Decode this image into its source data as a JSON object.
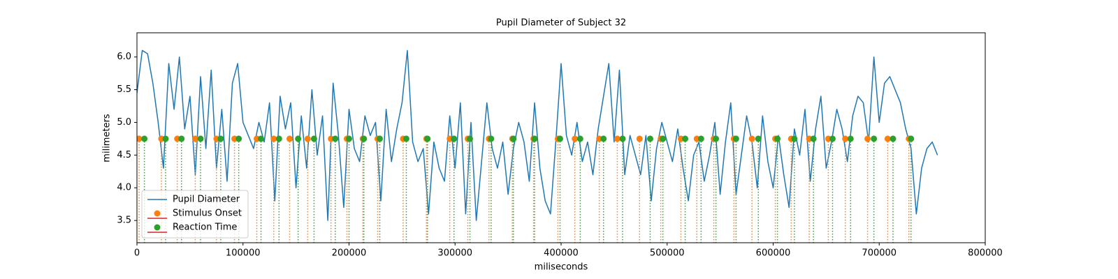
{
  "chart_data": {
    "type": "line",
    "title": "Pupil Diameter of Subject 32",
    "xlabel": "miliseconds",
    "ylabel": "milimeters",
    "xlim": [
      0,
      800000
    ],
    "xticks": [
      0,
      100000,
      200000,
      300000,
      400000,
      500000,
      600000,
      700000,
      800000
    ],
    "ylim": [
      3.16,
      6.37
    ],
    "yticks": [
      3.5,
      {
        "value": 4,
        "label": "4.0"
      },
      4.5,
      {
        "value": 5,
        "label": "5.0"
      },
      5.5,
      {
        "value": 6,
        "label": "6.0"
      }
    ],
    "legend": "lower left",
    "series": [
      {
        "name": "Pupil Diameter",
        "type": "line",
        "color": "#1f77b4",
        "x": [
          0,
          5000,
          10000,
          15000,
          20000,
          25000,
          30000,
          35000,
          40000,
          45000,
          50000,
          55000,
          60000,
          65000,
          70000,
          75000,
          80000,
          85000,
          90000,
          95000,
          100000,
          105000,
          110000,
          115000,
          120000,
          125000,
          130000,
          135000,
          140000,
          145000,
          150000,
          155000,
          160000,
          165000,
          170000,
          175000,
          180000,
          185000,
          190000,
          195000,
          200000,
          205000,
          210000,
          215000,
          220000,
          225000,
          230000,
          235000,
          240000,
          245000,
          250000,
          255000,
          260000,
          265000,
          270000,
          275000,
          280000,
          285000,
          290000,
          295000,
          300000,
          305000,
          310000,
          315000,
          320000,
          325000,
          330000,
          335000,
          340000,
          345000,
          350000,
          355000,
          360000,
          365000,
          370000,
          375000,
          380000,
          385000,
          390000,
          395000,
          400000,
          405000,
          410000,
          415000,
          420000,
          425000,
          430000,
          435000,
          440000,
          445000,
          450000,
          455000,
          460000,
          465000,
          470000,
          475000,
          480000,
          485000,
          490000,
          495000,
          500000,
          505000,
          510000,
          515000,
          520000,
          525000,
          530000,
          535000,
          540000,
          545000,
          550000,
          555000,
          560000,
          565000,
          570000,
          575000,
          580000,
          585000,
          590000,
          595000,
          600000,
          605000,
          610000,
          615000,
          620000,
          625000,
          630000,
          635000,
          640000,
          645000,
          650000,
          655000,
          660000,
          665000,
          670000,
          675000,
          680000,
          685000,
          690000,
          695000,
          700000,
          705000,
          710000,
          715000,
          720000,
          725000,
          730000,
          735000,
          740000,
          745000,
          750000,
          755000
        ],
        "values": [
          5.45,
          6.1,
          6.05,
          5.6,
          5.0,
          4.3,
          5.9,
          5.2,
          6.0,
          4.9,
          5.4,
          4.2,
          5.7,
          4.6,
          5.8,
          4.3,
          5.2,
          4.1,
          5.6,
          5.9,
          5.0,
          4.8,
          4.6,
          5.0,
          4.7,
          5.3,
          3.8,
          5.4,
          4.9,
          5.3,
          4.0,
          5.1,
          4.3,
          5.5,
          4.5,
          5.1,
          3.5,
          5.6,
          4.8,
          3.7,
          5.2,
          4.6,
          4.4,
          5.1,
          4.8,
          5.0,
          3.8,
          5.2,
          4.4,
          4.9,
          5.3,
          6.1,
          4.7,
          4.4,
          4.6,
          3.6,
          4.7,
          4.3,
          4.1,
          5.1,
          4.3,
          5.3,
          3.6,
          5.0,
          3.5,
          4.4,
          5.3,
          4.6,
          4.3,
          4.7,
          3.9,
          4.6,
          5.0,
          4.7,
          4.1,
          5.3,
          4.3,
          3.8,
          3.6,
          4.7,
          5.9,
          4.8,
          4.5,
          5.0,
          4.4,
          4.7,
          4.2,
          4.9,
          5.4,
          5.9,
          4.7,
          5.8,
          4.2,
          4.8,
          4.5,
          4.2,
          4.8,
          3.8,
          4.6,
          5.0,
          4.7,
          4.4,
          4.9,
          4.3,
          3.8,
          4.5,
          4.7,
          4.1,
          4.5,
          5.0,
          3.9,
          4.7,
          5.3,
          3.9,
          4.5,
          5.1,
          4.7,
          4.0,
          5.1,
          4.4,
          4.0,
          4.8,
          4.2,
          3.7,
          4.9,
          4.5,
          5.2,
          4.1,
          4.9,
          5.4,
          4.3,
          4.7,
          5.2,
          4.9,
          4.4,
          5.1,
          5.4,
          5.3,
          4.7,
          6.0,
          5.0,
          5.6,
          5.7,
          5.5,
          5.3,
          4.9,
          4.6,
          3.6,
          4.3,
          4.6,
          4.7,
          4.5
        ]
      },
      {
        "name": "Stimulus Onset",
        "type": "stem",
        "color": "#ff7f0e",
        "baseline_color": "#d62728",
        "x": [
          2000,
          23000,
          38000,
          55000,
          75000,
          92000,
          113000,
          129000,
          144000,
          161000,
          183000,
          198000,
          213000,
          227000,
          251000,
          273000,
          295000,
          312000,
          332000,
          354000,
          374000,
          397000,
          413000,
          436000,
          453000,
          474000,
          494000,
          513000,
          528000,
          544000,
          563000,
          580000,
          602000,
          617000,
          634000,
          652000,
          668000,
          689000,
          708000,
          728000
        ],
        "values": [
          4.75,
          4.75,
          4.75,
          4.75,
          4.75,
          4.75,
          4.75,
          4.75,
          4.75,
          4.75,
          4.75,
          4.75,
          4.75,
          4.75,
          4.75,
          4.75,
          4.75,
          4.75,
          4.75,
          4.75,
          4.75,
          4.75,
          4.75,
          4.75,
          4.75,
          4.75,
          4.75,
          4.75,
          4.75,
          4.75,
          4.75,
          4.75,
          4.75,
          4.75,
          4.75,
          4.75,
          4.75,
          4.75,
          4.75,
          4.75
        ]
      },
      {
        "name": "Reaction Time",
        "type": "stem",
        "color": "#2ca02c",
        "baseline_color": "#d62728",
        "x": [
          7000,
          27000,
          42000,
          60000,
          79000,
          96000,
          117000,
          134000,
          152000,
          167000,
          187000,
          200000,
          214000,
          229000,
          254000,
          274000,
          299000,
          314000,
          334000,
          355000,
          375000,
          399000,
          418000,
          440000,
          458000,
          484000,
          496000,
          517000,
          532000,
          546000,
          565000,
          586000,
          604000,
          620000,
          638000,
          656000,
          673000,
          695000,
          713000,
          730000
        ],
        "values": [
          4.75,
          4.75,
          4.75,
          4.75,
          4.75,
          4.75,
          4.75,
          4.75,
          4.75,
          4.75,
          4.75,
          4.75,
          4.75,
          4.75,
          4.75,
          4.75,
          4.75,
          4.75,
          4.75,
          4.75,
          4.75,
          4.75,
          4.75,
          4.75,
          4.75,
          4.75,
          4.75,
          4.75,
          4.75,
          4.75,
          4.75,
          4.75,
          4.75,
          4.75,
          4.75,
          4.75,
          4.75,
          4.75,
          4.75,
          4.75
        ]
      }
    ]
  }
}
